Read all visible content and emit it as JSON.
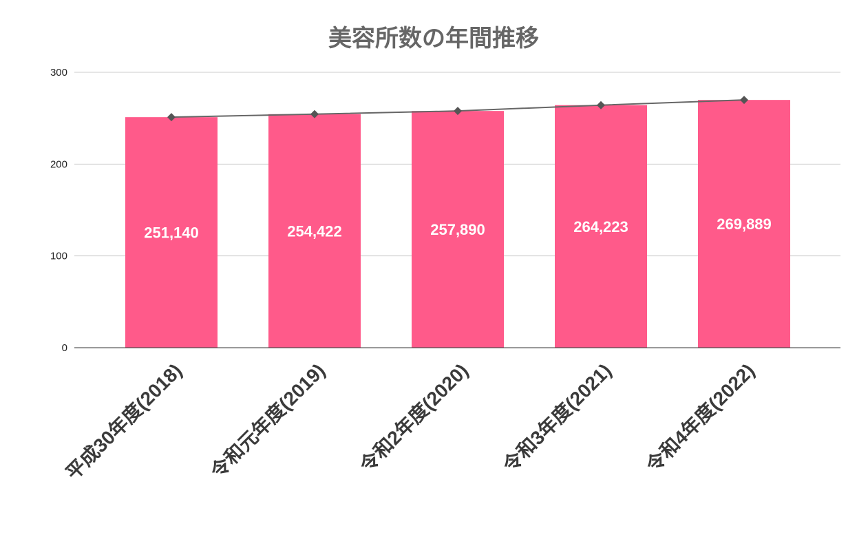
{
  "chart_data": {
    "type": "bar",
    "title": "美容所数の年間推移",
    "xlabel": "",
    "ylabel": "",
    "categories": [
      "平成30年度(2018)",
      "令和元年度(2019)",
      "令和2年度(2020)",
      "令和3年度(2021)",
      "令和4年度(2022)"
    ],
    "series": [
      {
        "type": "bar",
        "values": [
          251.14,
          254.422,
          257.89,
          264.223,
          269.889
        ],
        "data_labels": [
          "251,140",
          "254,422",
          "257,890",
          "264,223",
          "269,889"
        ],
        "color": "#FF5A8A"
      },
      {
        "type": "line",
        "values": [
          251.14,
          254.422,
          257.89,
          264.223,
          269.889
        ],
        "marker": "diamond",
        "color": "#666666"
      }
    ],
    "ylim": [
      0,
      300
    ],
    "yticks": [
      0,
      100,
      200,
      300
    ],
    "grid": true,
    "legend": "none"
  }
}
